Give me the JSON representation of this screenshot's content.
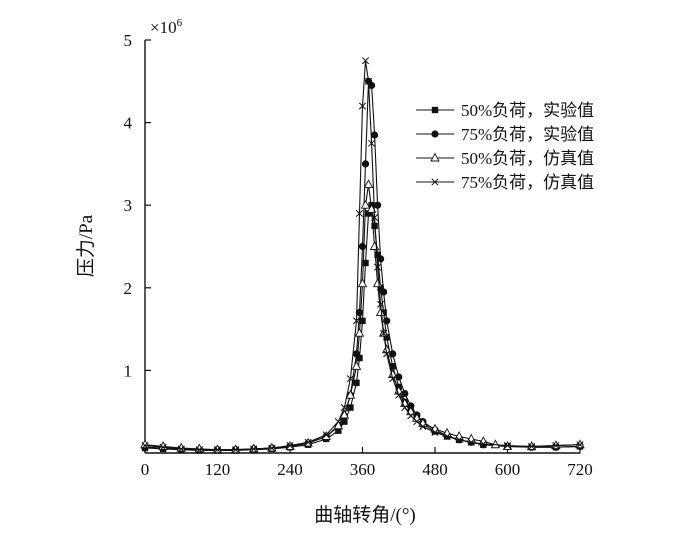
{
  "chart_data": {
    "type": "line",
    "title": "",
    "xlabel": "曲轴转角/(°)",
    "ylabel": "压力/Pa",
    "y_multiplier_label": "×10",
    "y_multiplier_exponent": "6",
    "xlim": [
      0,
      720
    ],
    "ylim": [
      0,
      5
    ],
    "x_ticks": [
      0,
      120,
      240,
      360,
      480,
      600,
      720
    ],
    "x_tick_labels": [
      "0",
      "120",
      "240",
      "360",
      "480",
      "600",
      "720"
    ],
    "y_ticks": [
      1,
      2,
      3,
      4,
      5
    ],
    "y_tick_labels": [
      "1",
      "2",
      "3",
      "4",
      "5"
    ],
    "grid": false,
    "legend_position": "top-right",
    "series": [
      {
        "name": "50%负荷，实验值",
        "marker": "square-filled",
        "x": [
          0,
          30,
          60,
          90,
          120,
          150,
          180,
          210,
          240,
          270,
          300,
          320,
          330,
          340,
          350,
          355,
          360,
          365,
          370,
          375,
          380,
          385,
          390,
          395,
          400,
          410,
          420,
          430,
          440,
          450,
          460,
          480,
          500,
          520,
          540,
          560,
          600,
          640,
          680,
          720
        ],
        "values": [
          0.06,
          0.05,
          0.04,
          0.03,
          0.03,
          0.03,
          0.04,
          0.05,
          0.07,
          0.1,
          0.17,
          0.27,
          0.38,
          0.55,
          0.85,
          1.15,
          1.6,
          2.3,
          2.9,
          3.0,
          2.75,
          2.4,
          2.0,
          1.7,
          1.4,
          1.05,
          0.8,
          0.62,
          0.5,
          0.42,
          0.35,
          0.26,
          0.2,
          0.16,
          0.13,
          0.1,
          0.08,
          0.07,
          0.07,
          0.08
        ]
      },
      {
        "name": "75%负荷，实验值",
        "marker": "circle-filled",
        "x": [
          0,
          30,
          60,
          90,
          120,
          150,
          180,
          210,
          240,
          270,
          300,
          320,
          330,
          340,
          350,
          355,
          360,
          365,
          370,
          375,
          380,
          385,
          390,
          395,
          400,
          410,
          420,
          430,
          440,
          450,
          460,
          480,
          500,
          520,
          540,
          560,
          600,
          640,
          680,
          720
        ],
        "values": [
          0.07,
          0.06,
          0.05,
          0.04,
          0.04,
          0.04,
          0.05,
          0.06,
          0.08,
          0.12,
          0.2,
          0.32,
          0.45,
          0.7,
          1.2,
          1.7,
          2.5,
          3.5,
          4.5,
          4.45,
          3.85,
          3.0,
          2.35,
          1.95,
          1.6,
          1.2,
          0.92,
          0.72,
          0.57,
          0.46,
          0.38,
          0.28,
          0.21,
          0.16,
          0.13,
          0.1,
          0.08,
          0.07,
          0.07,
          0.08
        ]
      },
      {
        "name": "50%负荷，仿真值",
        "marker": "triangle-open",
        "x": [
          0,
          30,
          60,
          90,
          120,
          150,
          180,
          210,
          240,
          270,
          300,
          320,
          330,
          340,
          350,
          355,
          360,
          365,
          370,
          375,
          380,
          385,
          390,
          395,
          400,
          410,
          420,
          430,
          440,
          450,
          460,
          480,
          500,
          520,
          540,
          560,
          580,
          600,
          640,
          680,
          720
        ],
        "values": [
          0.1,
          0.08,
          0.06,
          0.05,
          0.04,
          0.04,
          0.05,
          0.06,
          0.08,
          0.12,
          0.2,
          0.33,
          0.46,
          0.7,
          1.05,
          1.45,
          2.05,
          3.0,
          3.25,
          2.95,
          2.5,
          2.05,
          1.7,
          1.45,
          1.25,
          0.95,
          0.75,
          0.6,
          0.5,
          0.42,
          0.36,
          0.29,
          0.24,
          0.2,
          0.17,
          0.14,
          0.1,
          0.08,
          0.08,
          0.09,
          0.1
        ]
      },
      {
        "name": "75%负荷，仿真值",
        "marker": "x",
        "x": [
          0,
          30,
          60,
          90,
          120,
          150,
          180,
          210,
          240,
          270,
          300,
          320,
          330,
          340,
          350,
          355,
          360,
          365,
          370,
          375,
          380,
          385,
          390,
          395,
          400,
          410,
          420,
          430,
          440,
          450,
          460,
          480,
          500,
          520,
          540,
          560,
          600,
          640,
          680,
          720
        ],
        "values": [
          0.09,
          0.07,
          0.05,
          0.04,
          0.04,
          0.04,
          0.05,
          0.06,
          0.09,
          0.13,
          0.22,
          0.38,
          0.55,
          0.9,
          1.6,
          2.9,
          4.2,
          4.75,
          4.5,
          3.75,
          2.85,
          2.25,
          1.8,
          1.45,
          1.2,
          0.9,
          0.7,
          0.55,
          0.45,
          0.38,
          0.32,
          0.25,
          0.2,
          0.16,
          0.13,
          0.11,
          0.09,
          0.08,
          0.09,
          0.1
        ]
      }
    ]
  }
}
